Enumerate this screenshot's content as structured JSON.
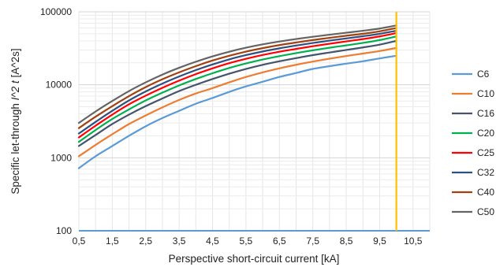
{
  "chart_data": {
    "type": "line",
    "xlabel": "Perspective short-circuit current [kA]",
    "ylabel_prefix": "Specific let-through ",
    "ylabel_symbol": "I^2 t",
    "ylabel_unit": " [A^2s]",
    "y_scale": "log",
    "ylim": [
      100,
      100000
    ],
    "y_ticks": [
      100,
      1000,
      10000,
      100000
    ],
    "y_tick_labels": [
      "100",
      "1000",
      "10000",
      "100000"
    ],
    "xlim": [
      0.5,
      11
    ],
    "x_ticks": [
      0.5,
      1.5,
      2.5,
      3.5,
      4.5,
      5.5,
      6.5,
      7.5,
      8.5,
      9.5,
      10.5
    ],
    "x_tick_labels": [
      "0,5",
      "1,5",
      "2,5",
      "3,5",
      "4,5",
      "5,5",
      "6,5",
      "7,5",
      "8,5",
      "9,5",
      "10,5"
    ],
    "grid": true,
    "legend_position": "right",
    "x": [
      0.5,
      1,
      1.5,
      2,
      2.5,
      3,
      3.5,
      4,
      4.5,
      5,
      5.5,
      6,
      6.5,
      7,
      7.5,
      8,
      8.5,
      9,
      9.5,
      10
    ],
    "series": [
      {
        "name": "C6",
        "color": "#5b9bd5",
        "values": [
          720,
          1050,
          1450,
          2000,
          2700,
          3500,
          4400,
          5500,
          6600,
          8000,
          9500,
          11000,
          12800,
          14500,
          16500,
          18000,
          19500,
          21000,
          23000,
          25000
        ]
      },
      {
        "name": "C10",
        "color": "#ed7d31",
        "values": [
          1050,
          1500,
          2100,
          2900,
          3800,
          4900,
          6200,
          7600,
          9000,
          10800,
          12800,
          14800,
          16800,
          18800,
          20800,
          22800,
          24800,
          26800,
          29000,
          32000
        ]
      },
      {
        "name": "C16",
        "color": "#44546a",
        "values": [
          1450,
          2050,
          2900,
          3900,
          5100,
          6500,
          8200,
          10000,
          12000,
          14200,
          16500,
          18800,
          21000,
          23200,
          25500,
          27700,
          30000,
          32500,
          35500,
          40000
        ]
      },
      {
        "name": "C20",
        "color": "#00b050",
        "values": [
          1650,
          2400,
          3400,
          4600,
          6100,
          7800,
          9800,
          12000,
          14400,
          17000,
          19600,
          22200,
          24700,
          27200,
          29700,
          32200,
          34700,
          37500,
          41000,
          46000
        ]
      },
      {
        "name": "C25",
        "color": "#ff0000",
        "values": [
          1900,
          2750,
          3900,
          5400,
          7100,
          9100,
          11400,
          14000,
          16800,
          19800,
          22700,
          25600,
          28400,
          31000,
          33800,
          36500,
          39300,
          42300,
          46000,
          51000
        ]
      },
      {
        "name": "C32",
        "color": "#2e4f7f",
        "values": [
          2150,
          3100,
          4400,
          6100,
          8100,
          10400,
          13000,
          15900,
          19000,
          22300,
          25500,
          28600,
          31600,
          34500,
          37400,
          40300,
          43200,
          46300,
          50000,
          55000
        ]
      },
      {
        "name": "C40",
        "color": "#a0420f",
        "values": [
          2550,
          3650,
          5100,
          7000,
          9300,
          11900,
          14800,
          18000,
          21500,
          25000,
          28500,
          31800,
          35000,
          38000,
          41000,
          44000,
          47000,
          50000,
          54000,
          60000
        ]
      },
      {
        "name": "C50",
        "color": "#646464",
        "values": [
          3000,
          4300,
          6000,
          8200,
          10800,
          13800,
          17100,
          20700,
          24500,
          28400,
          32200,
          35800,
          39200,
          42400,
          45500,
          48600,
          51700,
          55000,
          59000,
          65000
        ]
      }
    ],
    "vertical_marker": {
      "x": 10,
      "color": "#ffc000"
    },
    "baseline": {
      "y": 100,
      "color": "#5b9bd5"
    }
  }
}
